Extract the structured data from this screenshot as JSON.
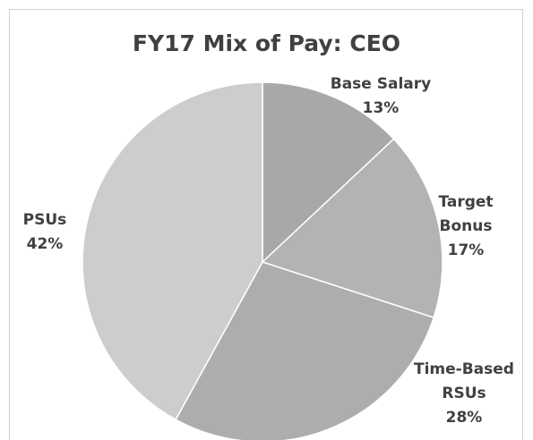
{
  "chart_data": {
    "type": "pie",
    "title": "FY17 Mix of Pay: CEO",
    "categories": [
      "Base Salary",
      "Target Bonus",
      "Time-Based RSUs",
      "PSUs"
    ],
    "values": [
      13,
      17,
      28,
      42
    ],
    "value_labels": [
      "13%",
      "17%",
      "28%",
      "42%"
    ],
    "colors": [
      "#a8a8a8",
      "#b3b3b3",
      "#adadad",
      "#cdcdcd"
    ]
  }
}
